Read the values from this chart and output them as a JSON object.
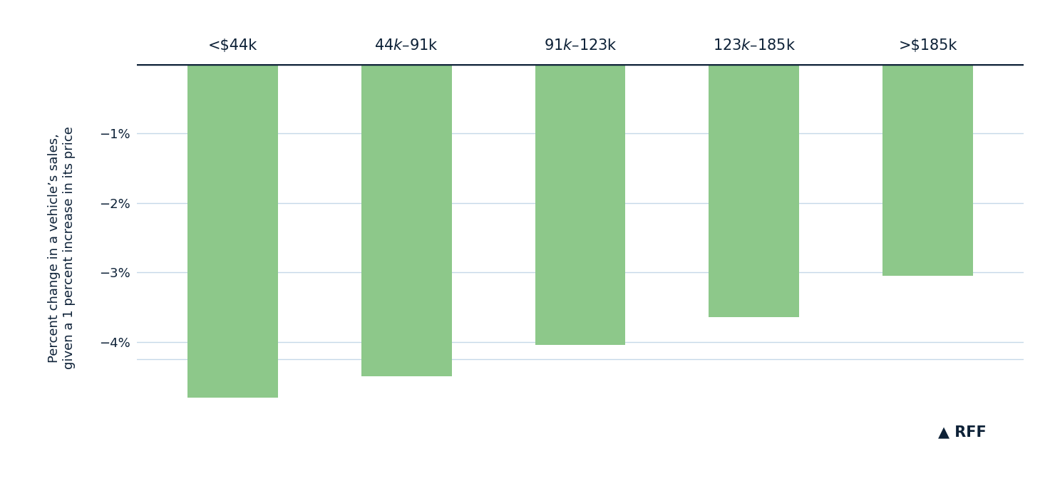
{
  "categories": [
    "<$44k",
    "$44k–$91k",
    "$91k–$123k",
    "$123k–$185k",
    ">$185k"
  ],
  "values": [
    -4.8,
    -4.5,
    -4.05,
    -3.65,
    -3.05
  ],
  "bar_color": "#8DC88A",
  "bar_width": 0.52,
  "ylabel_line1": "Percent change in a vehicle’s sales,",
  "ylabel_line2": "given a 1 percent increase in its price",
  "ylim": [
    -5.3,
    0.0
  ],
  "yticks": [
    -4,
    -3,
    -2,
    -1
  ],
  "yticklabels": [
    "−4%",
    "−3%",
    "−2%",
    "−1%"
  ],
  "top_line_color": "#0d2137",
  "grid_color": "#c5d8e8",
  "background_color": "#ffffff",
  "label_color": "#0d2137",
  "ylabel_fontsize": 13,
  "xtick_fontsize": 15,
  "ytick_fontsize": 13,
  "rff_color": "#0d2137",
  "rff_fontsize": 15
}
